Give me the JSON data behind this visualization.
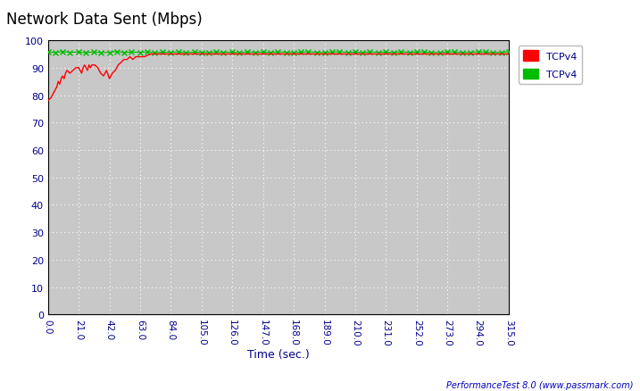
{
  "title": "Network Data Sent (Mbps)",
  "xlabel": "Time (sec.)",
  "xlim": [
    0.0,
    315.0
  ],
  "ylim": [
    0,
    100
  ],
  "yticks": [
    0,
    10,
    20,
    30,
    40,
    50,
    60,
    70,
    80,
    90,
    100
  ],
  "xticks": [
    0.0,
    21.0,
    42.0,
    63.0,
    84.0,
    105.0,
    126.0,
    147.0,
    168.0,
    189.0,
    210.0,
    231.0,
    252.0,
    273.0,
    294.0,
    315.0
  ],
  "background_color": "#c8c8c8",
  "outer_bg_color": "#ffffff",
  "title_color": "#000000",
  "axis_label_color": "#00008b",
  "tick_label_color": "#00008b",
  "watermark": "PerformanceTest 8.0 (www.passmark.com)",
  "red_label": "TCPv4",
  "green_label": "TCPv4",
  "red_color": "#ff0000",
  "green_color": "#00bb00",
  "red_x": [
    0,
    2,
    4,
    6,
    7,
    8,
    9,
    10,
    11,
    12,
    13,
    15,
    17,
    19,
    21,
    22,
    23,
    24,
    25,
    26,
    27,
    28,
    29,
    30,
    32,
    34,
    36,
    38,
    40,
    42,
    44,
    46,
    48,
    50,
    52,
    54,
    56,
    58,
    60,
    63,
    66,
    70,
    75,
    80,
    84,
    90,
    100,
    110,
    120,
    130,
    140,
    150,
    160,
    170,
    180,
    190,
    200,
    210,
    220,
    230,
    240,
    250,
    260,
    270,
    280,
    290,
    300,
    310,
    315
  ],
  "red_y": [
    78,
    79,
    81,
    83,
    85,
    84,
    86,
    87,
    86,
    88,
    89,
    88,
    89,
    90,
    90,
    89,
    88,
    90,
    91,
    90,
    89,
    91,
    90,
    91,
    91,
    90,
    88,
    87,
    89,
    86,
    88,
    89,
    91,
    92,
    93,
    93,
    94,
    93,
    94,
    94,
    94,
    95,
    95,
    95,
    95,
    95,
    95,
    95,
    95,
    95,
    95,
    95,
    95,
    95,
    95,
    95,
    95,
    95,
    95,
    95,
    95,
    95,
    95,
    95,
    95,
    95,
    95,
    95,
    95
  ],
  "green_x": [
    0,
    5,
    10,
    15,
    21,
    26,
    31,
    36,
    42,
    47,
    52,
    57,
    63,
    68,
    73,
    78,
    84,
    89,
    94,
    100,
    105,
    110,
    115,
    120,
    126,
    131,
    136,
    142,
    147,
    152,
    157,
    163,
    168,
    173,
    178,
    184,
    189,
    194,
    199,
    205,
    210,
    215,
    220,
    226,
    231,
    236,
    241,
    247,
    252,
    257,
    262,
    268,
    273,
    278,
    283,
    289,
    294,
    299,
    304,
    310,
    315
  ],
  "green_y": [
    95.8,
    95.5,
    95.9,
    95.6,
    95.7,
    95.4,
    95.8,
    95.5,
    95.6,
    95.9,
    95.5,
    95.7,
    95.6,
    95.8,
    95.4,
    95.7,
    95.6,
    95.8,
    95.5,
    95.7,
    95.6,
    95.5,
    95.8,
    95.6,
    95.7,
    95.4,
    95.8,
    95.6,
    95.7,
    95.5,
    95.8,
    95.6,
    95.5,
    95.7,
    95.8,
    95.6,
    95.5,
    95.7,
    95.8,
    95.6,
    95.7,
    95.5,
    95.8,
    95.6,
    95.7,
    95.5,
    95.8,
    95.6,
    95.7,
    95.8,
    95.5,
    95.6,
    95.7,
    95.8,
    95.5,
    95.6,
    95.8,
    95.7,
    95.5,
    95.6,
    95.8
  ]
}
